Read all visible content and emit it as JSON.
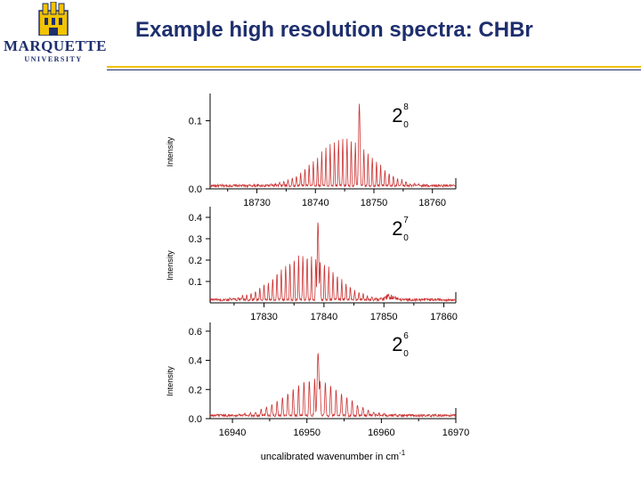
{
  "logo": {
    "name": "MARQUETTE",
    "subtitle": "UNIVERSITY"
  },
  "slide": {
    "title": "Example high resolution spectra: CHBr"
  },
  "colors": {
    "trace": "#cc3333",
    "navy": "#1e2f6e",
    "gold": "#f2c300"
  },
  "chart_data": [
    {
      "type": "line",
      "band": {
        "base": "2",
        "sup": "8",
        "sub": "0"
      },
      "xlim": [
        18722,
        18764
      ],
      "ylim": [
        0,
        0.14
      ],
      "xticks": [
        18730,
        18740,
        18750,
        18760
      ],
      "yticks": [
        0.0,
        0.1
      ],
      "ytick_labels": [
        "0.0",
        "0.1"
      ],
      "ylabel": "Intensity",
      "xlabel": "",
      "peak_center": 18745,
      "main_peak": {
        "x": 18747.5,
        "y": 0.125
      }
    },
    {
      "type": "line",
      "band": {
        "base": "2",
        "sup": "7",
        "sub": "0"
      },
      "xlim": [
        17821,
        17862
      ],
      "ylim": [
        0,
        0.45
      ],
      "xticks": [
        17830,
        17840,
        17850,
        17860
      ],
      "yticks": [
        0.1,
        0.2,
        0.3,
        0.4
      ],
      "ytick_labels": [
        "0.1",
        "0.2",
        "0.3",
        "0.4"
      ],
      "ylabel": "Intensity",
      "xlabel": "",
      "peak_center": 17837,
      "main_peak": {
        "x": 17839,
        "y": 0.38
      }
    },
    {
      "type": "line",
      "band": {
        "base": "2",
        "sup": "6",
        "sub": "0"
      },
      "xlim": [
        16937,
        16970
      ],
      "ylim": [
        0,
        0.66
      ],
      "xticks": [
        16940,
        16950,
        16960,
        16970
      ],
      "yticks": [
        0.0,
        0.2,
        0.4,
        0.6
      ],
      "ytick_labels": [
        "0.0",
        "0.2",
        "0.4",
        "0.6"
      ],
      "ylabel": "Intensity",
      "xlabel": "uncalibrated wavenumber in cm",
      "xlabel_sup": "-1",
      "peak_center": 16951,
      "main_peak": {
        "x": 16951.5,
        "y": 0.45
      }
    }
  ]
}
